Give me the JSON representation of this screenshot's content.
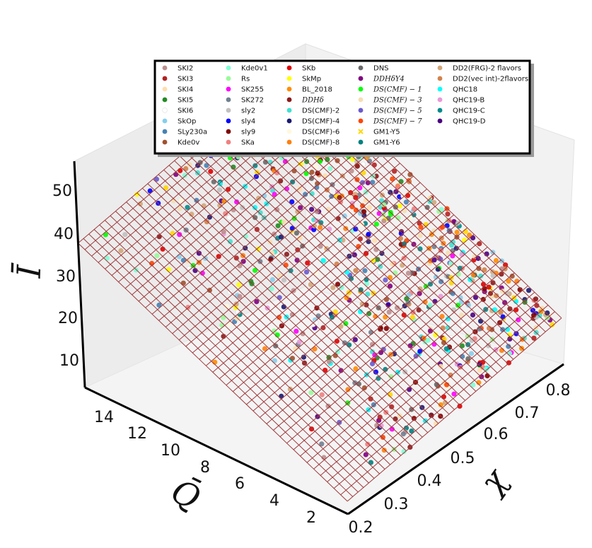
{
  "chart_data": {
    "type": "scatter",
    "kind": "3d-scatter-with-fitted-surface",
    "x_axis": {
      "label": "χ",
      "ticks": [
        "0.2",
        "0.3",
        "0.4",
        "0.5",
        "0.6",
        "0.7",
        "0.8"
      ],
      "range": [
        0.2,
        0.85
      ]
    },
    "y_axis": {
      "label": "Q̄",
      "ticks": [
        "2",
        "4",
        "6",
        "8",
        "10",
        "12",
        "14"
      ],
      "range": [
        1,
        15
      ]
    },
    "z_axis": {
      "label": "Ī",
      "ticks": [
        "10",
        "20",
        "30",
        "40",
        "50"
      ],
      "range": [
        3,
        56
      ]
    },
    "surface": {
      "color": "#a0383a"
    },
    "legend_placement": "top",
    "legend": [
      {
        "name": "SKI2",
        "color": "#bc8f8f"
      },
      {
        "name": "SKI3",
        "color": "#b22222"
      },
      {
        "name": "SKI4",
        "color": "#ffdead"
      },
      {
        "name": "SKI5",
        "color": "#228b22"
      },
      {
        "name": "SKI6",
        "color": "#ffffff"
      },
      {
        "name": "SkOp",
        "color": "#87ceeb"
      },
      {
        "name": "SLy230a",
        "color": "#4682b4"
      },
      {
        "name": "Kde0v",
        "color": "#a0522d"
      },
      {
        "name": "Kde0v1",
        "color": "#7fffd4"
      },
      {
        "name": "Rs",
        "color": "#98fb98"
      },
      {
        "name": "SK255",
        "color": "#ff00ff"
      },
      {
        "name": "SK272",
        "color": "#708090"
      },
      {
        "name": "sly2",
        "color": "#c0c0c0"
      },
      {
        "name": "sly4",
        "color": "#0000ff"
      },
      {
        "name": "sly9",
        "color": "#800000"
      },
      {
        "name": "SKa",
        "color": "#f08080"
      },
      {
        "name": "SKb",
        "color": "#e00000"
      },
      {
        "name": "SkMp",
        "color": "#ffff00"
      },
      {
        "name": "BL_2018",
        "color": "#ff8c00"
      },
      {
        "name": "DDHδ",
        "color": "#8b1a1a",
        "math": true
      },
      {
        "name": "DS(CMF)-2",
        "color": "#40e0d0"
      },
      {
        "name": "DS(CMF)-4",
        "color": "#191970"
      },
      {
        "name": "DS(CMF)-6",
        "color": "#fff8dc"
      },
      {
        "name": "DS(CMF)-8",
        "color": "#ff7f0e"
      },
      {
        "name": "DNS",
        "color": "#696969"
      },
      {
        "name": "DDHδY4",
        "color": "#800080",
        "math": true
      },
      {
        "name": "DS(CMF) − 1",
        "color": "#00ff00",
        "math": true
      },
      {
        "name": "DS(CMF) − 3",
        "color": "#f5deb3",
        "math": true
      },
      {
        "name": "DS(CMF) − 5",
        "color": "#6a5acd",
        "math": true
      },
      {
        "name": "DS(CMF) − 7",
        "color": "#ff4500",
        "math": true
      },
      {
        "name": "GM1-Y5",
        "color": "#ffd700",
        "marker": "x"
      },
      {
        "name": "GM1-Y6",
        "color": "#008080"
      },
      {
        "name": "DD2(FRG)-2 flavors",
        "color": "#d2a679"
      },
      {
        "name": "DD2(vec int)-2flavors",
        "color": "#d2824b"
      },
      {
        "name": "QHC18",
        "color": "#00ffff"
      },
      {
        "name": "QHC19-B",
        "color": "#e899d8"
      },
      {
        "name": "QHC19-C",
        "color": "#008b8b"
      },
      {
        "name": "QHC19-D",
        "color": "#4b0082"
      }
    ]
  }
}
